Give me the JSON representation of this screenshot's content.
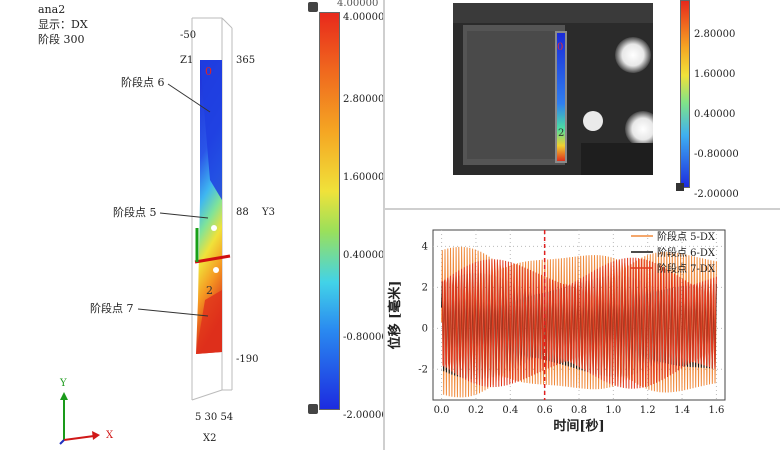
{
  "left_view": {
    "title": "ana2",
    "display_label": "显示：DX",
    "stage_label": "阶段 300",
    "points": [
      {
        "label": "阶段点 6"
      },
      {
        "label": "阶段点 5"
      },
      {
        "label": "阶段点 7"
      }
    ],
    "markers": [
      "0",
      "2"
    ],
    "coords": {
      "top_minus": "-50",
      "z1": "Z1",
      "y_top": "365",
      "y_mid": "88",
      "y_axis": "Y3",
      "y_bottom": "-190",
      "x_ticks": "5 30 54",
      "x_axis": "X2"
    },
    "axis_triad": {
      "x": "X",
      "y": "Y"
    }
  },
  "colorbar_main": {
    "top_label": "4.00000",
    "ticks": [
      "4.00000",
      "2.80000",
      "1.60000",
      "0.40000",
      "-0.80000",
      "-2.00000"
    ]
  },
  "camera_view": {
    "markers": [
      "0",
      "2"
    ],
    "colorbar_ticks": [
      "2.80000",
      "1.60000",
      "0.40000",
      "-0.80000",
      "-2.00000"
    ]
  },
  "chart_data": {
    "type": "line",
    "xlabel": "时间[秒]",
    "ylabel": "位移 [毫米]",
    "xlim": [
      -0.05,
      1.65
    ],
    "ylim": [
      -3.5,
      4.8
    ],
    "xticks": [
      "0.0",
      "0.2",
      "0.4",
      "0.6",
      "0.8",
      "1.0",
      "1.2",
      "1.4",
      "1.6"
    ],
    "yticks": [
      "4",
      "2",
      "0",
      "-2"
    ],
    "grid": true,
    "legend_position": "top-right",
    "cursor_x": 0.6,
    "series": [
      {
        "name": "阶段点 5-DX",
        "color": "#f08a3c",
        "amplitude": 3.9,
        "offset": 0.3,
        "freq": 62,
        "points": 400
      },
      {
        "name": "阶段点 6-DX",
        "color": "#111111",
        "amplitude": 2.6,
        "offset": 0.1,
        "freq": 62,
        "points": 400
      },
      {
        "name": "阶段点 7-DX",
        "color": "#e23a1f",
        "amplitude": 3.2,
        "offset": 0.25,
        "freq": 62,
        "points": 400
      }
    ]
  }
}
